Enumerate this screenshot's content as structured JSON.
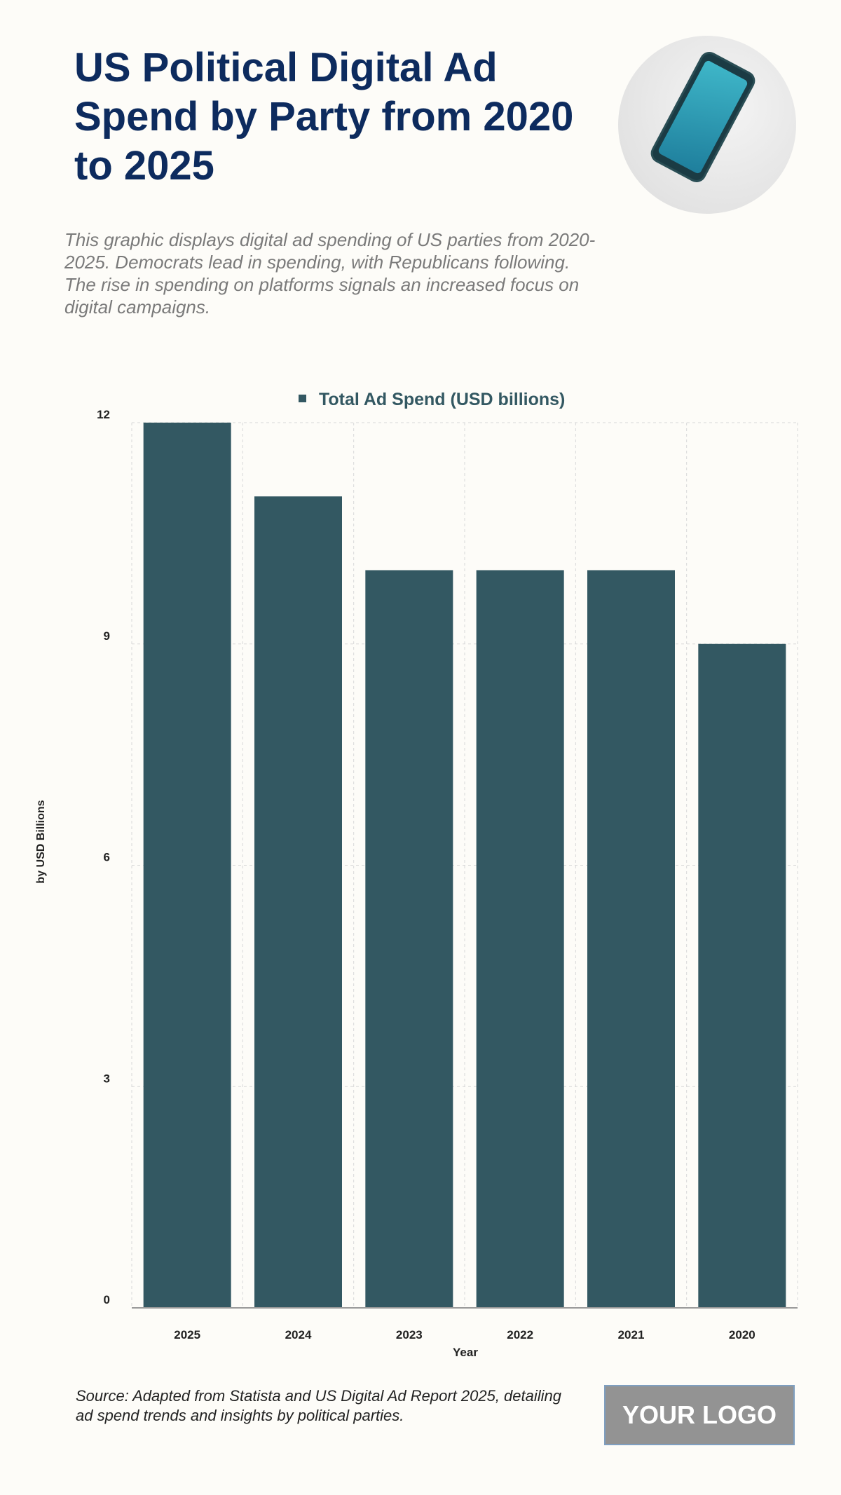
{
  "header": {
    "title": "US Political Digital Ad Spend by Party from 2020 to 2025",
    "description": "This graphic displays digital ad spending of US parties from 2020-2025. Democrats lead in spending, with Republicans following. The rise in spending on platforms signals an increased focus on digital campaigns."
  },
  "chart_data": {
    "type": "bar",
    "categories": [
      "2025",
      "2024",
      "2023",
      "2022",
      "2021",
      "2020"
    ],
    "series": [
      {
        "name": "Total Ad Spend (USD billions)",
        "values": [
          12,
          11,
          10,
          10,
          10,
          9
        ]
      }
    ],
    "xlabel": "Year",
    "ylabel": "by USD Billions",
    "ylim": [
      0,
      12
    ],
    "yticks": [
      0,
      3,
      6,
      9,
      12
    ],
    "grid": true,
    "legend": "top-center",
    "color": "#335862"
  },
  "footer": {
    "source": "Source: Adapted from Statista and US Digital Ad Report 2025, detailing ad spend trends and insights by political parties.",
    "logo": "YOUR LOGO"
  }
}
